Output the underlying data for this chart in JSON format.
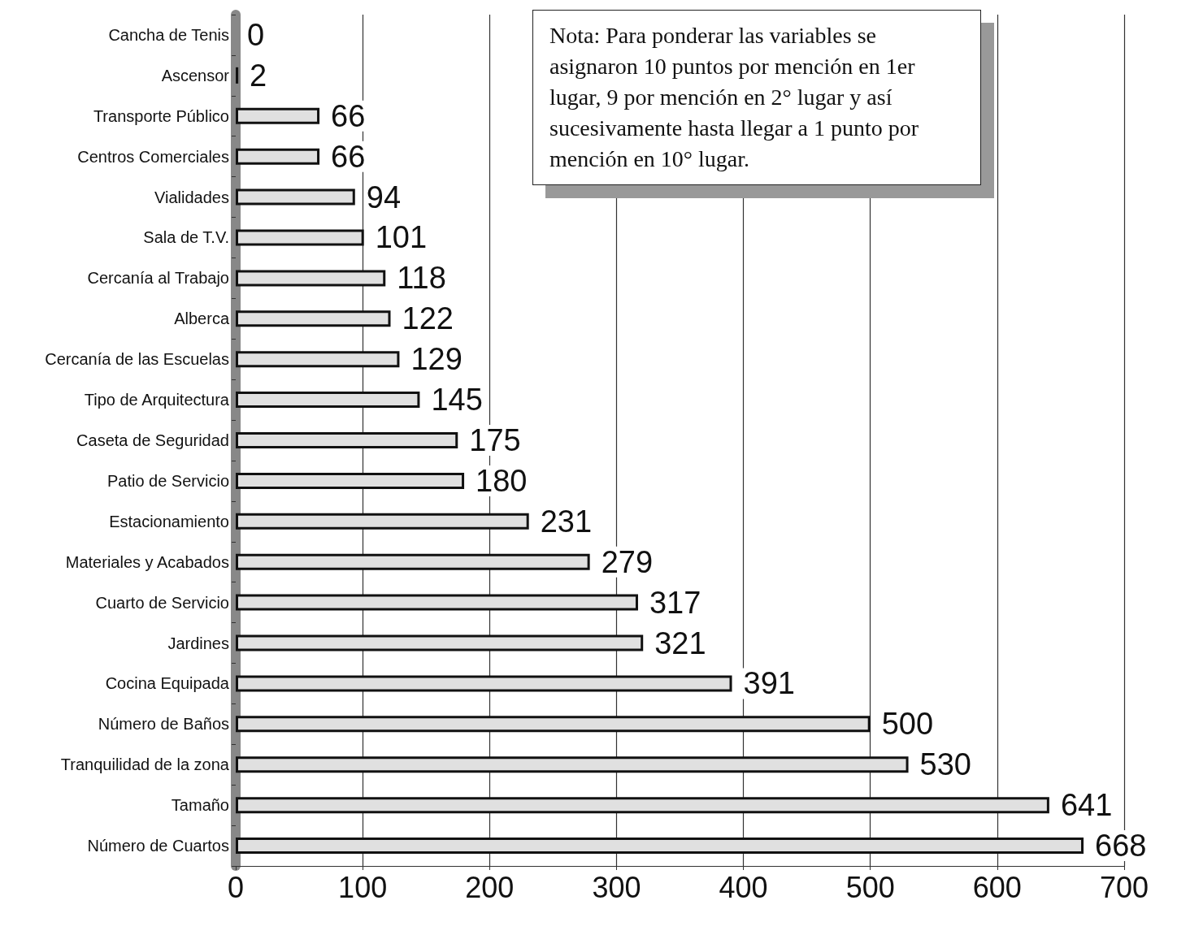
{
  "chart_data": {
    "type": "bar",
    "orientation": "horizontal",
    "categories": [
      "Cancha de Tenis",
      "Ascensor",
      "Transporte Público",
      "Centros Comerciales",
      "Vialidades",
      "Sala de T.V.",
      "Cercanía al Trabajo",
      "Alberca",
      "Cercanía de las Escuelas",
      "Tipo de Arquitectura",
      "Caseta de Seguridad",
      "Patio de Servicio",
      "Estacionamiento",
      "Materiales y Acabados",
      "Cuarto de Servicio",
      "Jardines",
      "Cocina Equipada",
      "Número de Baños",
      "Tranquilidad de la zona",
      "Tamaño",
      "Número de Cuartos"
    ],
    "values": [
      0,
      2,
      66,
      66,
      94,
      101,
      118,
      122,
      129,
      145,
      175,
      180,
      231,
      279,
      317,
      321,
      391,
      500,
      530,
      641,
      668
    ],
    "color": "#e0e0e0",
    "xlim": [
      0,
      700
    ],
    "xticks": [
      0,
      100,
      200,
      300,
      400,
      500,
      600,
      700
    ],
    "grid": "x",
    "data_labels": true,
    "annotations": [
      "Nota: Para ponderar las variables se asignaron 10 puntos por mención en 1er lugar, 9 por mención en 2° lugar y así sucesivamente hasta llegar a 1 punto por mención en 10° lugar."
    ]
  }
}
